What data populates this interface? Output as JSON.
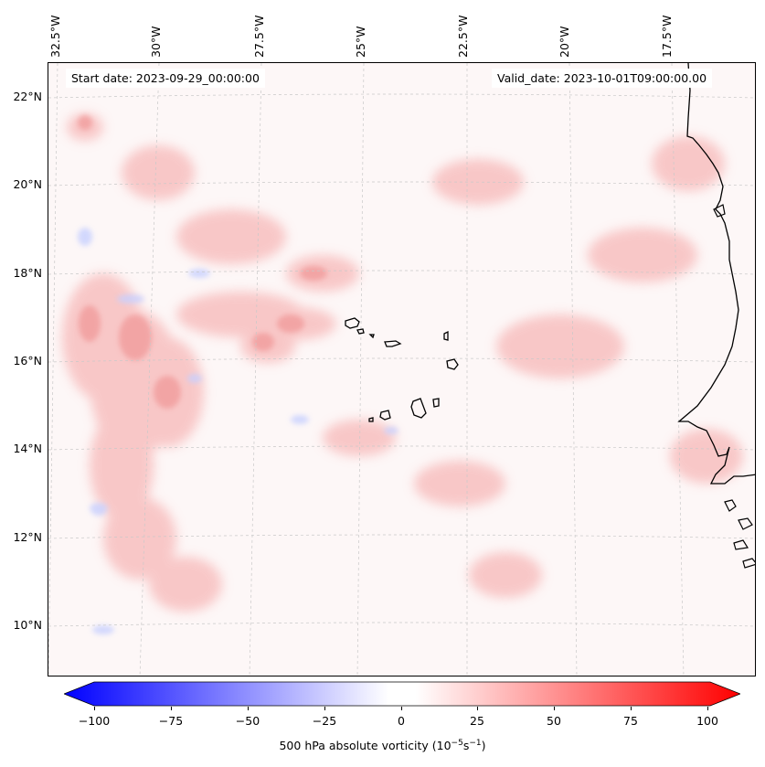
{
  "map": {
    "lon_labels": [
      "32.5°W",
      "30°W",
      "27.5°W",
      "25°W",
      "22.5°W",
      "20°W",
      "17.5°W"
    ],
    "lat_labels": [
      "22°N",
      "20°N",
      "18°N",
      "16°N",
      "14°N",
      "12°N",
      "10°N"
    ],
    "start_date": "Start date: 2023-09-29_00:00:00",
    "valid_date": "Valid_date: 2023-10-01T09:00:00.00",
    "field_colors": {
      "background": "#fdf7f7",
      "positive": "#f08080",
      "negative": "#8090ff",
      "coast": "#000000"
    }
  },
  "colorbar": {
    "ticks": [
      "−100",
      "−75",
      "−50",
      "−25",
      "0",
      "25",
      "50",
      "75",
      "100"
    ],
    "label": "500 hPa absolute vorticity (10",
    "label_exp1": "−5",
    "label_mid": "s",
    "label_exp2": "−1",
    "label_end": ")",
    "range": [
      -100,
      100
    ],
    "cmap": "bwr"
  }
}
